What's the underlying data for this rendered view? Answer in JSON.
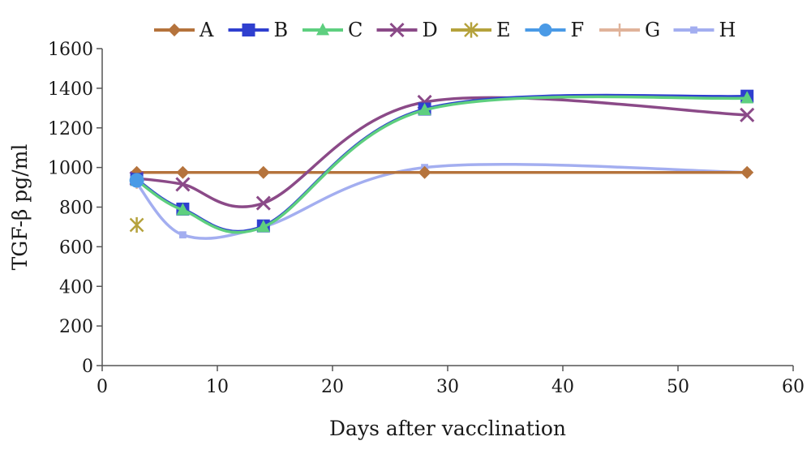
{
  "chart_data": {
    "type": "line",
    "title": "",
    "xlabel": "Days after vacclination",
    "ylabel": "TGF-β  pg/ml",
    "xlim": [
      0,
      60
    ],
    "ylim": [
      0,
      1600
    ],
    "xticks": [
      0,
      10,
      20,
      30,
      40,
      50,
      60
    ],
    "yticks": [
      0,
      200,
      400,
      600,
      800,
      1000,
      1200,
      1400,
      1600
    ],
    "grid": false,
    "legend_position": "top",
    "series": [
      {
        "name": "A",
        "color": "#b5733c",
        "marker": "diamond",
        "x": [
          3,
          7,
          14,
          28,
          56
        ],
        "y": [
          975,
          975,
          975,
          975,
          975
        ]
      },
      {
        "name": "B",
        "color": "#2f3fcf",
        "marker": "square",
        "x": [
          3,
          7,
          14,
          28,
          56
        ],
        "y": [
          940,
          790,
          705,
          1295,
          1360
        ]
      },
      {
        "name": "C",
        "color": "#5ecf7f",
        "marker": "triangle",
        "x": [
          3,
          7,
          14,
          28,
          56
        ],
        "y": [
          935,
          785,
          700,
          1290,
          1350
        ]
      },
      {
        "name": "D",
        "color": "#8b4a88",
        "marker": "x",
        "x": [
          3,
          7,
          14,
          28,
          56
        ],
        "y": [
          945,
          915,
          820,
          1330,
          1265
        ]
      },
      {
        "name": "E",
        "color": "#b5a23c",
        "marker": "star",
        "x": [
          3
        ],
        "y": [
          710
        ]
      },
      {
        "name": "F",
        "color": "#4a9ae6",
        "marker": "circle",
        "x": [
          3
        ],
        "y": [
          935
        ]
      },
      {
        "name": "G",
        "color": "#e0b39a",
        "marker": "plus",
        "x": [
          3
        ],
        "y": [
          925
        ]
      },
      {
        "name": "H",
        "color": "#a3aef0",
        "marker": "small-square",
        "x": [
          3,
          7,
          14,
          28,
          56
        ],
        "y": [
          920,
          660,
          700,
          1000,
          975
        ]
      }
    ]
  }
}
